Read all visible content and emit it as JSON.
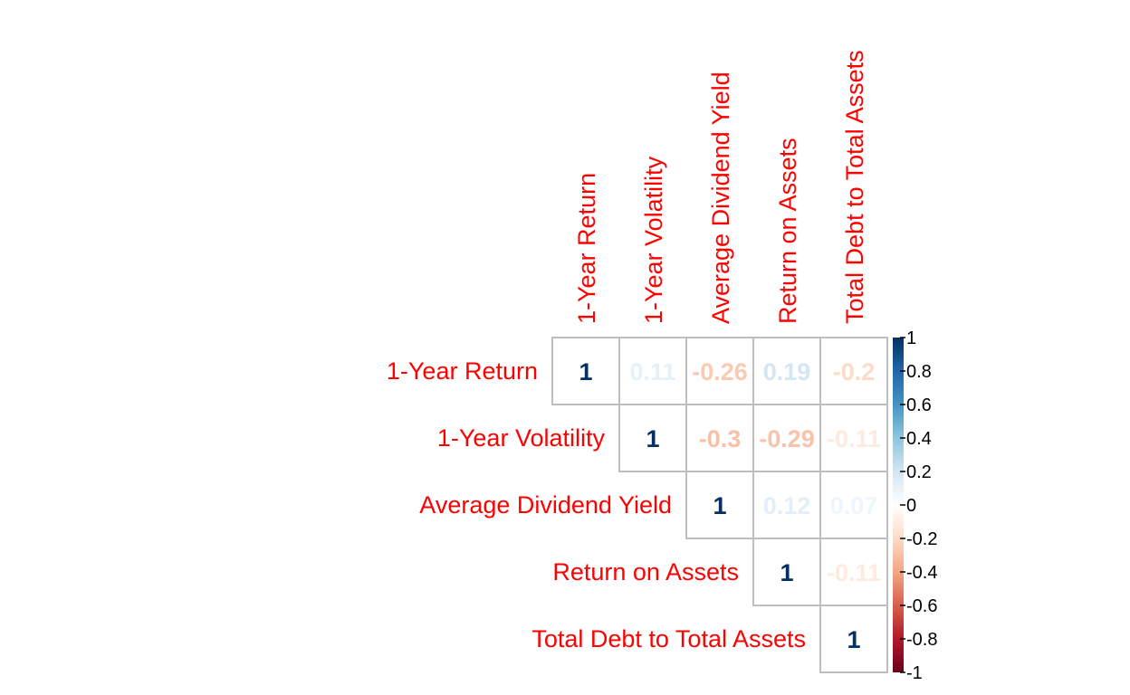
{
  "chart_data": {
    "type": "heatmap",
    "variables": [
      "1-Year Return",
      "1-Year Volatility",
      "Average Dividend Yield",
      "Return on Assets",
      "Total Debt to Total Assets"
    ],
    "layout": "upper-triangle",
    "matrix": [
      [
        1,
        0.11,
        -0.26,
        0.19,
        -0.2
      ],
      [
        null,
        1,
        -0.3,
        -0.29,
        -0.11
      ],
      [
        null,
        null,
        1,
        0.12,
        0.07
      ],
      [
        null,
        null,
        null,
        1,
        -0.11
      ],
      [
        null,
        null,
        null,
        null,
        1
      ]
    ],
    "value_labels": [
      [
        "1",
        "0.11",
        "-0.26",
        "0.19",
        "-0.2"
      ],
      [
        null,
        "1",
        "-0.3",
        "-0.29",
        "-0.11"
      ],
      [
        null,
        null,
        "1",
        "0.12",
        "0.07"
      ],
      [
        null,
        null,
        null,
        "1",
        "-0.11"
      ],
      [
        null,
        null,
        null,
        null,
        "1"
      ]
    ],
    "colorbar": {
      "range": [
        -1,
        1
      ],
      "ticks": [
        1,
        0.8,
        0.6,
        0.4,
        0.2,
        0,
        -0.2,
        -0.4,
        -0.6,
        -0.8,
        -1
      ],
      "tick_labels": [
        "1",
        "0.8",
        "0.6",
        "0.4",
        "0.2",
        "0",
        "-0.2",
        "-0.4",
        "-0.6",
        "-0.8",
        "-1"
      ],
      "colors_low_to_high": [
        "#67001F",
        "#B2182B",
        "#D6604D",
        "#F4A582",
        "#FDDBC7",
        "#FFFFFF",
        "#D1E5F0",
        "#92C5DE",
        "#4393C3",
        "#2166AC",
        "#053061"
      ]
    },
    "label_color": "#FF0000",
    "grid_color": "#BEBEBE"
  }
}
